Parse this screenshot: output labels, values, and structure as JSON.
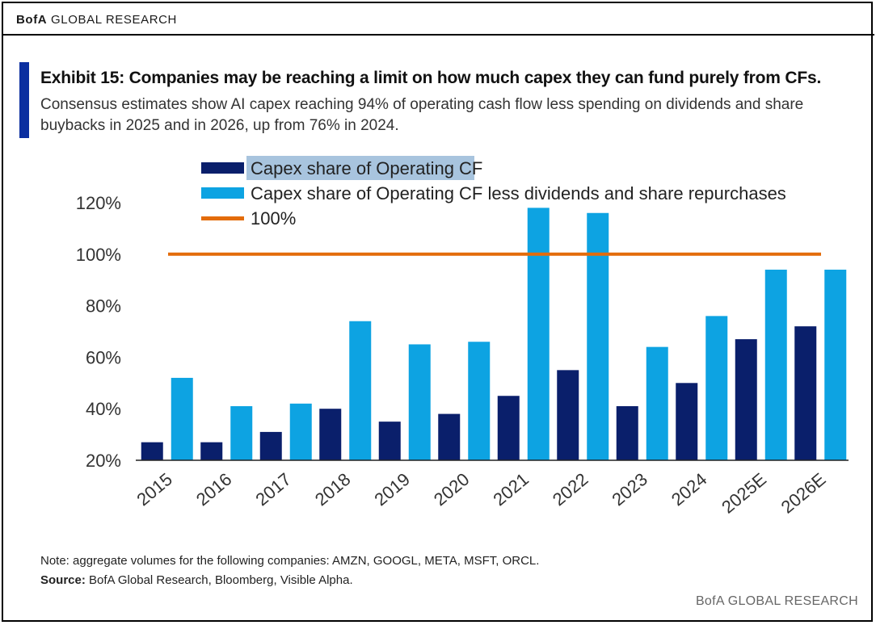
{
  "header": {
    "brand_bold": "BofA",
    "brand_rest": " GLOBAL RESEARCH"
  },
  "title": "Exhibit 15: Companies may be reaching a limit on how much capex they can fund purely from CFs.",
  "subtitle": "Consensus estimates show AI capex reaching 94% of operating cash flow less spending on dividends and share buybacks in 2025 and in 2026, up from 76% in 2024.",
  "chart_data": {
    "type": "bar",
    "categories": [
      "2015",
      "2016",
      "2017",
      "2018",
      "2019",
      "2020",
      "2021",
      "2022",
      "2023",
      "2024",
      "2025E",
      "2026E"
    ],
    "series": [
      {
        "name": "Capex share of Operating CF",
        "color": "#0a1f6b",
        "values": [
          27,
          27,
          31,
          40,
          35,
          38,
          45,
          55,
          41,
          50,
          67,
          72
        ]
      },
      {
        "name": "Capex share of Operating CF less dividends and share repurchases",
        "color": "#0da3e2",
        "values": [
          52,
          41,
          42,
          74,
          65,
          66,
          118,
          116,
          64,
          76,
          94,
          94
        ]
      }
    ],
    "reference_line": {
      "name": "100%",
      "value": 100,
      "color": "#e36c0a"
    },
    "y_ticks": [
      "20%",
      "40%",
      "60%",
      "80%",
      "100%",
      "120%"
    ],
    "y_tick_values": [
      20,
      40,
      60,
      80,
      100,
      120
    ],
    "ylim": [
      20,
      120
    ],
    "legend_position": "top-left",
    "grid": false
  },
  "footer": {
    "note": "Note: aggregate volumes for the following companies: AMZN, GOOGL, META, MSFT, ORCL.",
    "source_label": "Source:",
    "source_text": " BofA Global Research, Bloomberg, Visible Alpha.",
    "brand": "BofA GLOBAL RESEARCH"
  }
}
